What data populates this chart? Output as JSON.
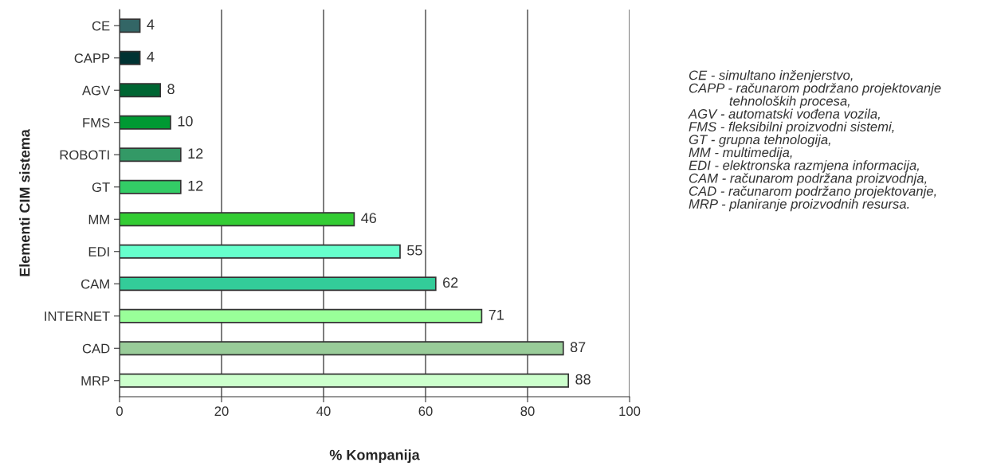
{
  "chart_data": {
    "type": "bar",
    "orientation": "horizontal",
    "xlabel": "% Kompanija",
    "ylabel": "Elementi CIM sistema",
    "categories": [
      "CE",
      "CAPP",
      "AGV",
      "FMS",
      "ROBOTI",
      "GT",
      "MM",
      "EDI",
      "CAM",
      "INTERNET",
      "CAD",
      "MRP"
    ],
    "values": [
      4,
      4,
      8,
      10,
      12,
      12,
      46,
      55,
      62,
      71,
      87,
      88
    ],
    "colors": [
      "#336666",
      "#003333",
      "#006633",
      "#009933",
      "#339966",
      "#33cc66",
      "#33cc33",
      "#66ffcc",
      "#33cc99",
      "#99ff99",
      "#99cc99",
      "#ccffcc"
    ],
    "xlim": [
      0,
      100
    ],
    "xticks": [
      0,
      20,
      40,
      60,
      80,
      100
    ],
    "grid": "x",
    "data_labels": true,
    "annotations": [
      "CE - simultano inženjerstvo,\nCAPP - računarom podržano projektovanje\n           tehnoloških procesa,\nAGV - automatski vođena vozila,\nFMS - fleksibilni proizvodni sistemi,\nGT - grupna tehnologija,\nMM - multimedija,\nEDI - elektronska razmjena informacija,\nCAM - računarom podržana proizvodnja,\nCAD - računarom podržano projektovanje,\nMRP - planiranje proizvodnih resursa."
    ]
  }
}
